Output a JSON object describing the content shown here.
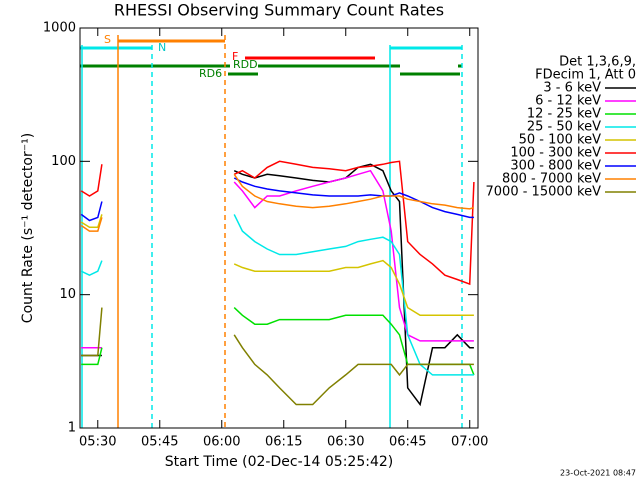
{
  "chart_data": {
    "type": "line",
    "title": "RHESSI Observing Summary Count Rates",
    "x_label": "Start Time (02-Dec-14 05:25:42)",
    "y_label": "Count Rate (s⁻¹ detector⁻¹)",
    "legend_header": [
      "Det 1,3,6,9,",
      "FDecim 1, Att 0"
    ],
    "footer": "23-Oct-2021 08:47",
    "annotations": [
      "S",
      "N",
      "F",
      "RDD",
      "RD6"
    ],
    "log_y": true,
    "xlim": [
      "05:25:42",
      "07:02"
    ],
    "xticks": [
      "05:30",
      "05:45",
      "06:00",
      "06:15",
      "06:30",
      "06:45",
      "07:00"
    ],
    "ylim": [
      1,
      1000
    ],
    "yticks": [
      1,
      10,
      100,
      1000
    ],
    "x": [
      "05:26",
      "05:28",
      "05:30",
      "05:31",
      "05:45",
      "06:03",
      "06:05",
      "06:08",
      "06:11",
      "06:14",
      "06:18",
      "06:22",
      "06:26",
      "06:30",
      "06:33",
      "06:36",
      "06:39",
      "06:41",
      "06:43",
      "06:45",
      "06:48",
      "06:51",
      "06:54",
      "06:57",
      "07:00",
      "07:01"
    ],
    "series": [
      {
        "name": "3 - 6 keV",
        "color": "#000000",
        "values": [
          3.5,
          3.5,
          3.5,
          3.5,
          null,
          85,
          80,
          75,
          80,
          78,
          75,
          72,
          70,
          75,
          90,
          95,
          85,
          60,
          50,
          2,
          1.5,
          4,
          4,
          5,
          4,
          4
        ]
      },
      {
        "name": "6 - 12 keV",
        "color": "#ff00ff",
        "values": [
          4,
          4,
          4,
          4,
          null,
          70,
          60,
          45,
          55,
          55,
          60,
          65,
          70,
          75,
          80,
          85,
          60,
          30,
          8,
          5,
          4.5,
          4.5,
          4.5,
          4.5,
          4.5,
          4.5
        ]
      },
      {
        "name": "12 - 25 keV",
        "color": "#00e000",
        "values": [
          3,
          3,
          3,
          4,
          null,
          8,
          7,
          6,
          6,
          6.5,
          6.5,
          6.5,
          6.5,
          7,
          7,
          7,
          7,
          6,
          5,
          3,
          3,
          3,
          3,
          3,
          3,
          2.5
        ]
      },
      {
        "name": "25 - 50 keV",
        "color": "#00e8e8",
        "values": [
          15,
          14,
          15,
          18,
          null,
          40,
          30,
          25,
          22,
          20,
          20,
          21,
          22,
          23,
          25,
          26,
          27,
          25,
          20,
          5,
          3,
          2.5,
          2.5,
          2.5,
          2.5,
          2.5
        ]
      },
      {
        "name": "50 - 100 keV",
        "color": "#d4c400",
        "values": [
          35,
          32,
          32,
          40,
          null,
          17,
          16,
          15,
          15,
          15,
          15,
          15,
          15,
          16,
          16,
          17,
          18,
          16,
          12,
          8,
          7,
          7,
          7,
          7,
          7,
          7
        ]
      },
      {
        "name": "100 - 300 keV",
        "color": "#ff0000",
        "values": [
          60,
          55,
          60,
          95,
          null,
          80,
          85,
          75,
          90,
          100,
          95,
          90,
          88,
          85,
          90,
          92,
          95,
          98,
          100,
          25,
          20,
          17,
          14,
          13,
          12,
          70
        ]
      },
      {
        "name": "300 - 800 keV",
        "color": "#0000ff",
        "values": [
          40,
          36,
          38,
          50,
          null,
          75,
          70,
          65,
          62,
          60,
          58,
          56,
          55,
          55,
          55,
          56,
          55,
          55,
          58,
          55,
          50,
          45,
          42,
          40,
          38,
          38
        ]
      },
      {
        "name": "800 - 7000 keV",
        "color": "#ff8000",
        "values": [
          33,
          30,
          30,
          38,
          null,
          80,
          65,
          55,
          50,
          48,
          46,
          45,
          46,
          48,
          50,
          52,
          55,
          55,
          55,
          52,
          50,
          48,
          47,
          45,
          44,
          45
        ]
      },
      {
        "name": "7000 - 15000 keV",
        "color": "#808000",
        "values": [
          3.5,
          3.5,
          3.5,
          8,
          null,
          5,
          4,
          3,
          2.5,
          2,
          1.5,
          1.5,
          2,
          2.5,
          3,
          3,
          3,
          3,
          2.5,
          3,
          3,
          3,
          3,
          3,
          3,
          3
        ]
      }
    ]
  }
}
